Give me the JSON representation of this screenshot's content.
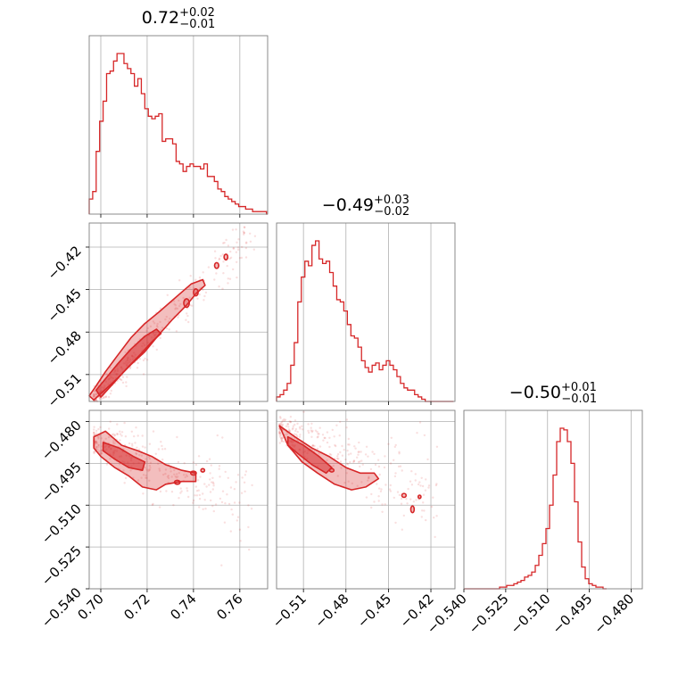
{
  "chart_data": {
    "type": "corner",
    "color": "#d62728",
    "grid": true,
    "parameters": [
      {
        "median": "0.72",
        "plus": "+0.02",
        "minus": "−0.01",
        "range": [
          0.695,
          0.772
        ],
        "ticks": [
          0.7,
          0.72,
          0.74,
          0.76
        ],
        "tick_labels": [
          "0.70",
          "0.72",
          "0.74",
          "0.76"
        ],
        "hist_edges_start": 0.695,
        "hist_bin_width": 0.0015,
        "hist_values": [
          6,
          9,
          25,
          37,
          45,
          56,
          57,
          61,
          64,
          64,
          60,
          58,
          56,
          51,
          54,
          48,
          42,
          39,
          38,
          39,
          40,
          29,
          30,
          30,
          28,
          21,
          20,
          17,
          19,
          20,
          19,
          19,
          18,
          20,
          15,
          15,
          13,
          10,
          9,
          7,
          6,
          5,
          4,
          3,
          3,
          2,
          2,
          1,
          1,
          1,
          1,
          0
        ]
      },
      {
        "median": "−0.49",
        "plus": "+0.03",
        "minus": "−0.02",
        "range": [
          -0.529,
          -0.403
        ],
        "ticks": [
          -0.51,
          -0.48,
          -0.45,
          -0.42
        ],
        "tick_labels": [
          "−0.51",
          "−0.48",
          "−0.45",
          "−0.42"
        ],
        "hist_edges_start": -0.529,
        "hist_bin_width": 0.0025,
        "hist_values": [
          2,
          3,
          5,
          8,
          16,
          26,
          44,
          55,
          62,
          60,
          69,
          71,
          63,
          61,
          62,
          57,
          51,
          45,
          44,
          40,
          34,
          29,
          28,
          24,
          18,
          15,
          13,
          16,
          17,
          14,
          16,
          18,
          16,
          14,
          11,
          8,
          6,
          5,
          5,
          3,
          2,
          1,
          0,
          0,
          0,
          0,
          0,
          0,
          0,
          0
        ]
      },
      {
        "median": "−0.50",
        "plus": "+0.01",
        "minus": "−0.01",
        "range": [
          -0.54,
          -0.476
        ],
        "ticks": [
          -0.54,
          -0.525,
          -0.51,
          -0.495,
          -0.48
        ],
        "tick_labels": [
          "−0.540",
          "−0.525",
          "−0.510",
          "−0.495",
          "−0.480"
        ],
        "hist_edges_start": -0.54,
        "hist_bin_width": 0.00128,
        "hist_values": [
          0,
          0,
          0,
          0,
          0,
          0,
          0,
          0,
          0,
          0,
          1,
          1,
          2,
          2,
          3,
          4,
          5,
          7,
          8,
          10,
          14,
          20,
          27,
          36,
          50,
          68,
          88,
          96,
          95,
          88,
          75,
          52,
          28,
          13,
          6,
          3,
          2,
          1,
          1,
          0
        ]
      }
    ],
    "pairs": [
      {
        "x": 0,
        "y": 1,
        "contour_outer": [
          [
            0.697,
            -0.528
          ],
          [
            0.701,
            -0.522
          ],
          [
            0.707,
            -0.513
          ],
          [
            0.713,
            -0.503
          ],
          [
            0.719,
            -0.494
          ],
          [
            0.725,
            -0.482
          ],
          [
            0.731,
            -0.471
          ],
          [
            0.737,
            -0.461
          ],
          [
            0.741,
            -0.453
          ],
          [
            0.745,
            -0.447
          ],
          [
            0.744,
            -0.443
          ],
          [
            0.739,
            -0.446
          ],
          [
            0.732,
            -0.456
          ],
          [
            0.725,
            -0.466
          ],
          [
            0.719,
            -0.474
          ],
          [
            0.713,
            -0.484
          ],
          [
            0.707,
            -0.497
          ],
          [
            0.702,
            -0.508
          ],
          [
            0.698,
            -0.518
          ],
          [
            0.695,
            -0.525
          ]
        ],
        "contour_inner": [
          [
            0.7,
            -0.526
          ],
          [
            0.705,
            -0.517
          ],
          [
            0.711,
            -0.506
          ],
          [
            0.717,
            -0.496
          ],
          [
            0.722,
            -0.487
          ],
          [
            0.726,
            -0.481
          ],
          [
            0.724,
            -0.478
          ],
          [
            0.719,
            -0.483
          ],
          [
            0.713,
            -0.492
          ],
          [
            0.707,
            -0.503
          ],
          [
            0.702,
            -0.513
          ],
          [
            0.698,
            -0.521
          ]
        ],
        "islands": [
          [
            0.737,
            -0.4595,
            0.0012,
            0.003
          ],
          [
            0.741,
            -0.452,
            0.001,
            0.0025
          ],
          [
            0.75,
            -0.433,
            0.0009,
            0.002
          ],
          [
            0.754,
            -0.427,
            0.0008,
            0.002
          ]
        ],
        "scatter_line": {
          "x0": 0.697,
          "y0": -0.528,
          "slope": 1.75,
          "scatter": 0.008,
          "xmax": 0.768,
          "n": 320
        }
      },
      {
        "x": 0,
        "y": 2,
        "contour_outer": [
          [
            0.697,
            -0.4855
          ],
          [
            0.702,
            -0.4835
          ],
          [
            0.709,
            -0.4885
          ],
          [
            0.716,
            -0.4905
          ],
          [
            0.722,
            -0.4925
          ],
          [
            0.728,
            -0.4955
          ],
          [
            0.735,
            -0.4975
          ],
          [
            0.741,
            -0.4985
          ],
          [
            0.741,
            -0.5015
          ],
          [
            0.735,
            -0.5015
          ],
          [
            0.728,
            -0.5025
          ],
          [
            0.724,
            -0.5045
          ],
          [
            0.718,
            -0.5035
          ],
          [
            0.712,
            -0.4995
          ],
          [
            0.706,
            -0.4965
          ],
          [
            0.7,
            -0.4925
          ],
          [
            0.697,
            -0.4895
          ]
        ],
        "contour_inner": [
          [
            0.701,
            -0.4875
          ],
          [
            0.708,
            -0.4895
          ],
          [
            0.714,
            -0.4925
          ],
          [
            0.719,
            -0.4945
          ],
          [
            0.718,
            -0.4975
          ],
          [
            0.712,
            -0.4965
          ],
          [
            0.706,
            -0.4935
          ],
          [
            0.701,
            -0.4905
          ]
        ],
        "islands": [
          [
            0.74,
            -0.4985,
            0.0012,
            0.0007
          ],
          [
            0.744,
            -0.4975,
            0.0008,
            0.0006
          ],
          [
            0.733,
            -0.5018,
            0.0012,
            0.0007
          ]
        ],
        "scatter_line": {
          "x0": 0.697,
          "y0": -0.487,
          "slope": -0.35,
          "scatter": 0.006,
          "xmax": 0.766,
          "n": 320
        }
      },
      {
        "x": 1,
        "y": 2,
        "contour_outer": [
          [
            -0.527,
            -0.4815
          ],
          [
            -0.516,
            -0.4855
          ],
          [
            -0.504,
            -0.4895
          ],
          [
            -0.492,
            -0.4925
          ],
          [
            -0.48,
            -0.4965
          ],
          [
            -0.47,
            -0.4985
          ],
          [
            -0.46,
            -0.4985
          ],
          [
            -0.457,
            -0.5005
          ],
          [
            -0.466,
            -0.5035
          ],
          [
            -0.476,
            -0.5045
          ],
          [
            -0.488,
            -0.5025
          ],
          [
            -0.5,
            -0.4985
          ],
          [
            -0.511,
            -0.4945
          ],
          [
            -0.521,
            -0.4885
          ]
        ],
        "contour_inner": [
          [
            -0.521,
            -0.4855
          ],
          [
            -0.51,
            -0.4885
          ],
          [
            -0.499,
            -0.4925
          ],
          [
            -0.49,
            -0.4965
          ],
          [
            -0.494,
            -0.4985
          ],
          [
            -0.504,
            -0.4955
          ],
          [
            -0.514,
            -0.4915
          ],
          [
            -0.521,
            -0.4885
          ]
        ],
        "islands": [
          [
            -0.439,
            -0.5065,
            0.0015,
            0.0007
          ],
          [
            -0.433,
            -0.5115,
            0.0012,
            0.0012
          ],
          [
            -0.428,
            -0.507,
            0.001,
            0.0006
          ],
          [
            -0.49,
            -0.4975,
            0.0015,
            0.0006
          ]
        ],
        "scatter_line": {
          "x0": -0.527,
          "y0": -0.483,
          "slope": -0.22,
          "scatter": 0.006,
          "xmax": -0.415,
          "n": 320
        }
      }
    ]
  }
}
